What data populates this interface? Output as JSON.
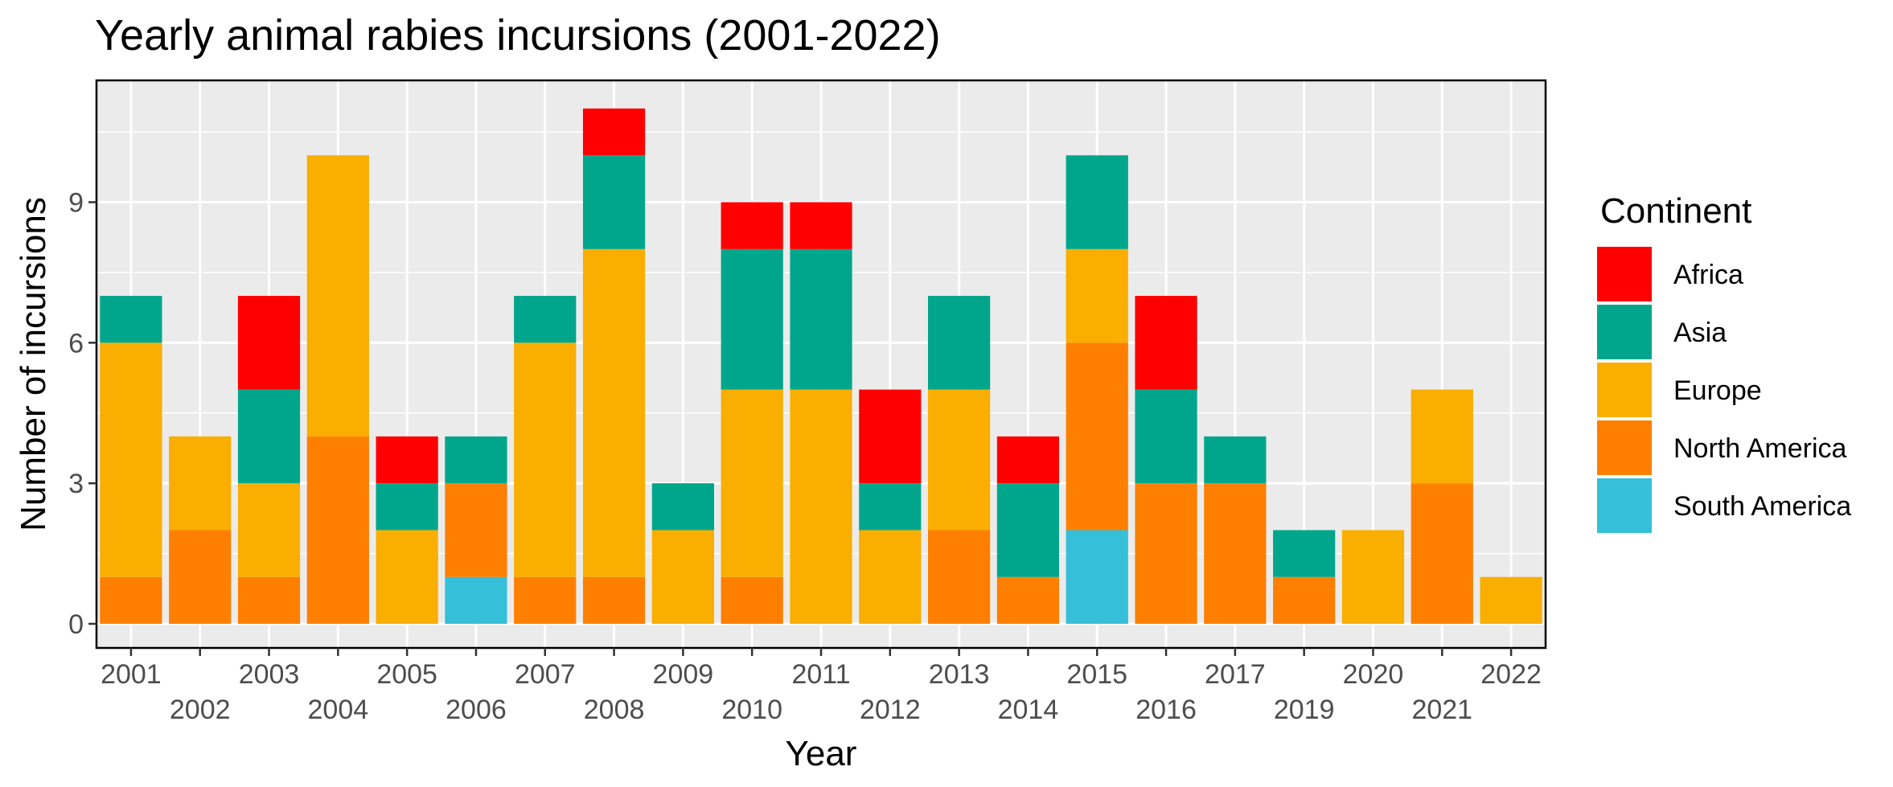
{
  "chart_data": {
    "type": "bar",
    "stacked": true,
    "title": "Yearly animal rabies incursions (2001-2022)",
    "xlabel": "Year",
    "ylabel": "Number of incursions",
    "categories": [
      "2001",
      "2002",
      "2003",
      "2004",
      "2005",
      "2006",
      "2007",
      "2008",
      "2009",
      "2010",
      "2011",
      "2012",
      "2013",
      "2014",
      "2015",
      "2016",
      "2017",
      "2019",
      "2020",
      "2021",
      "2022"
    ],
    "ylim": [
      0,
      11.6
    ],
    "yticks": [
      0,
      3,
      6,
      9
    ],
    "grid": true,
    "legend": {
      "title": "Continent",
      "position": "right"
    },
    "series": [
      {
        "name": "South America",
        "color": "#36BFD8",
        "values": [
          0,
          0,
          0,
          0,
          0,
          1,
          0,
          0,
          0,
          0,
          0,
          0,
          0,
          0,
          2,
          0,
          0,
          0,
          0,
          0,
          0
        ]
      },
      {
        "name": "North America",
        "color": "#FF7F00",
        "values": [
          1,
          2,
          1,
          4,
          0,
          2,
          1,
          1,
          0,
          1,
          0,
          0,
          2,
          1,
          4,
          3,
          3,
          1,
          0,
          3,
          0
        ]
      },
      {
        "name": "Europe",
        "color": "#F9AE00",
        "values": [
          5,
          2,
          2,
          6,
          2,
          0,
          5,
          7,
          2,
          4,
          5,
          2,
          3,
          0,
          2,
          0,
          0,
          0,
          2,
          2,
          1
        ]
      },
      {
        "name": "Asia",
        "color": "#00A68C",
        "values": [
          1,
          0,
          2,
          0,
          1,
          1,
          1,
          2,
          1,
          3,
          3,
          1,
          2,
          2,
          2,
          2,
          1,
          1,
          0,
          0,
          0
        ]
      },
      {
        "name": "Africa",
        "color": "#FF0000",
        "values": [
          0,
          0,
          2,
          0,
          1,
          0,
          0,
          1,
          0,
          1,
          1,
          2,
          0,
          1,
          0,
          2,
          0,
          0,
          0,
          0,
          0
        ]
      }
    ],
    "legend_order": [
      "Africa",
      "Asia",
      "Europe",
      "North America",
      "South America"
    ]
  }
}
